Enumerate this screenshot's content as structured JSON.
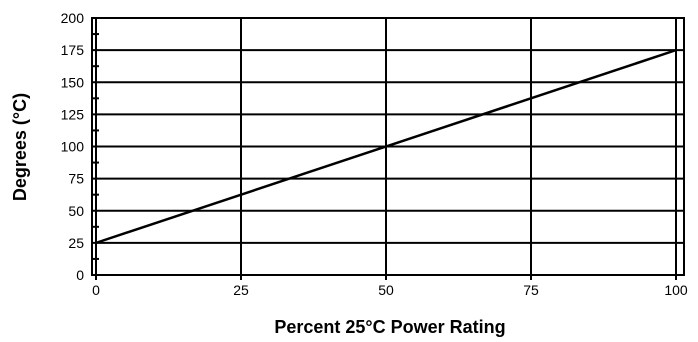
{
  "chart_data": {
    "type": "line",
    "title": "",
    "xlabel": "Percent 25°C Power Rating",
    "ylabel": "Degrees (°C)",
    "xlim": [
      0,
      100
    ],
    "ylim": [
      0,
      200
    ],
    "x_ticks": [
      0,
      25,
      50,
      75,
      100
    ],
    "y_ticks": [
      0,
      25,
      50,
      75,
      100,
      125,
      150,
      175,
      200
    ],
    "x_tick_labels": [
      "0",
      "25",
      "50",
      "75",
      "100"
    ],
    "y_tick_labels": [
      "0",
      "25",
      "50",
      "75",
      "100",
      "125",
      "150",
      "175",
      "200"
    ],
    "grid": true,
    "series": [
      {
        "x": [
          0,
          100
        ],
        "values": [
          25,
          175
        ]
      }
    ],
    "colors": {
      "line": "#000000",
      "grid": "#000000"
    }
  }
}
